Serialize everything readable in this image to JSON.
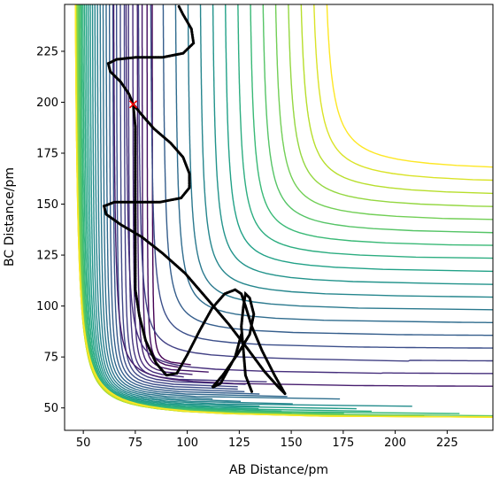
{
  "chart_data": {
    "type": "contour",
    "title": "",
    "xlabel": "AB Distance/pm",
    "ylabel": "BC Distance/pm",
    "xlim": [
      41,
      247
    ],
    "ylim": [
      39,
      248
    ],
    "xticks": [
      50,
      75,
      100,
      125,
      150,
      175,
      200,
      225
    ],
    "yticks": [
      50,
      75,
      100,
      125,
      150,
      175,
      200,
      225
    ],
    "grid": false,
    "legend": "none",
    "colormap": "viridis",
    "contour_levels": 34,
    "colormap_stops": [
      "#440154",
      "#482878",
      "#3e4a89",
      "#31688e",
      "#26828e",
      "#1f9e89",
      "#35b779",
      "#6ece58",
      "#b5de2b",
      "#fde725"
    ],
    "trajectory_color": "#000000",
    "marker_color": "#ff0000",
    "marker_label": "x",
    "trajectory": [
      [
        147,
        57
      ],
      [
        142,
        66
      ],
      [
        136,
        78
      ],
      [
        131,
        90
      ],
      [
        128,
        100
      ],
      [
        126,
        106
      ],
      [
        123,
        108
      ],
      [
        118,
        106
      ],
      [
        112,
        99
      ],
      [
        106,
        88
      ],
      [
        100,
        76
      ],
      [
        95,
        67
      ],
      [
        90,
        66
      ],
      [
        85,
        72
      ],
      [
        80,
        83
      ],
      [
        77,
        95
      ],
      [
        75,
        108
      ],
      [
        75,
        122
      ],
      [
        75,
        136
      ],
      [
        75,
        150
      ],
      [
        75,
        163
      ],
      [
        75,
        176
      ],
      [
        75,
        188
      ],
      [
        74,
        199
      ]
    ],
    "trajectory_secondary": [
      [
        131,
        58
      ],
      [
        128,
        66
      ],
      [
        127,
        78
      ],
      [
        126,
        90
      ],
      [
        127,
        100
      ],
      [
        128,
        106
      ],
      [
        130,
        104
      ],
      [
        132,
        96
      ],
      [
        130,
        86
      ],
      [
        124,
        76
      ],
      [
        117,
        66
      ],
      [
        112,
        60
      ],
      [
        116,
        62
      ],
      [
        123,
        75
      ],
      [
        126,
        86
      ]
    ],
    "trajectory_upper": [
      [
        74,
        199
      ],
      [
        72,
        204
      ],
      [
        68,
        210
      ],
      [
        63,
        215
      ],
      [
        62,
        219
      ],
      [
        66,
        221
      ],
      [
        75,
        222
      ],
      [
        88,
        222
      ],
      [
        98,
        224
      ],
      [
        103,
        229
      ],
      [
        102,
        236
      ],
      [
        98,
        243
      ],
      [
        96,
        247
      ]
    ],
    "trajectory_mid": [
      [
        74,
        199
      ],
      [
        78,
        194
      ],
      [
        84,
        187
      ],
      [
        92,
        180
      ],
      [
        98,
        173
      ],
      [
        101,
        165
      ],
      [
        101,
        158
      ],
      [
        97,
        153
      ],
      [
        87,
        151
      ],
      [
        76,
        151
      ],
      [
        65,
        151
      ],
      [
        60,
        149
      ],
      [
        61,
        145
      ],
      [
        68,
        140
      ],
      [
        78,
        134
      ],
      [
        88,
        126
      ],
      [
        99,
        116
      ],
      [
        110,
        103
      ],
      [
        120,
        91
      ],
      [
        129,
        79
      ],
      [
        137,
        68
      ],
      [
        144,
        60
      ],
      [
        147,
        57
      ]
    ],
    "marker": [
      74,
      199
    ]
  }
}
